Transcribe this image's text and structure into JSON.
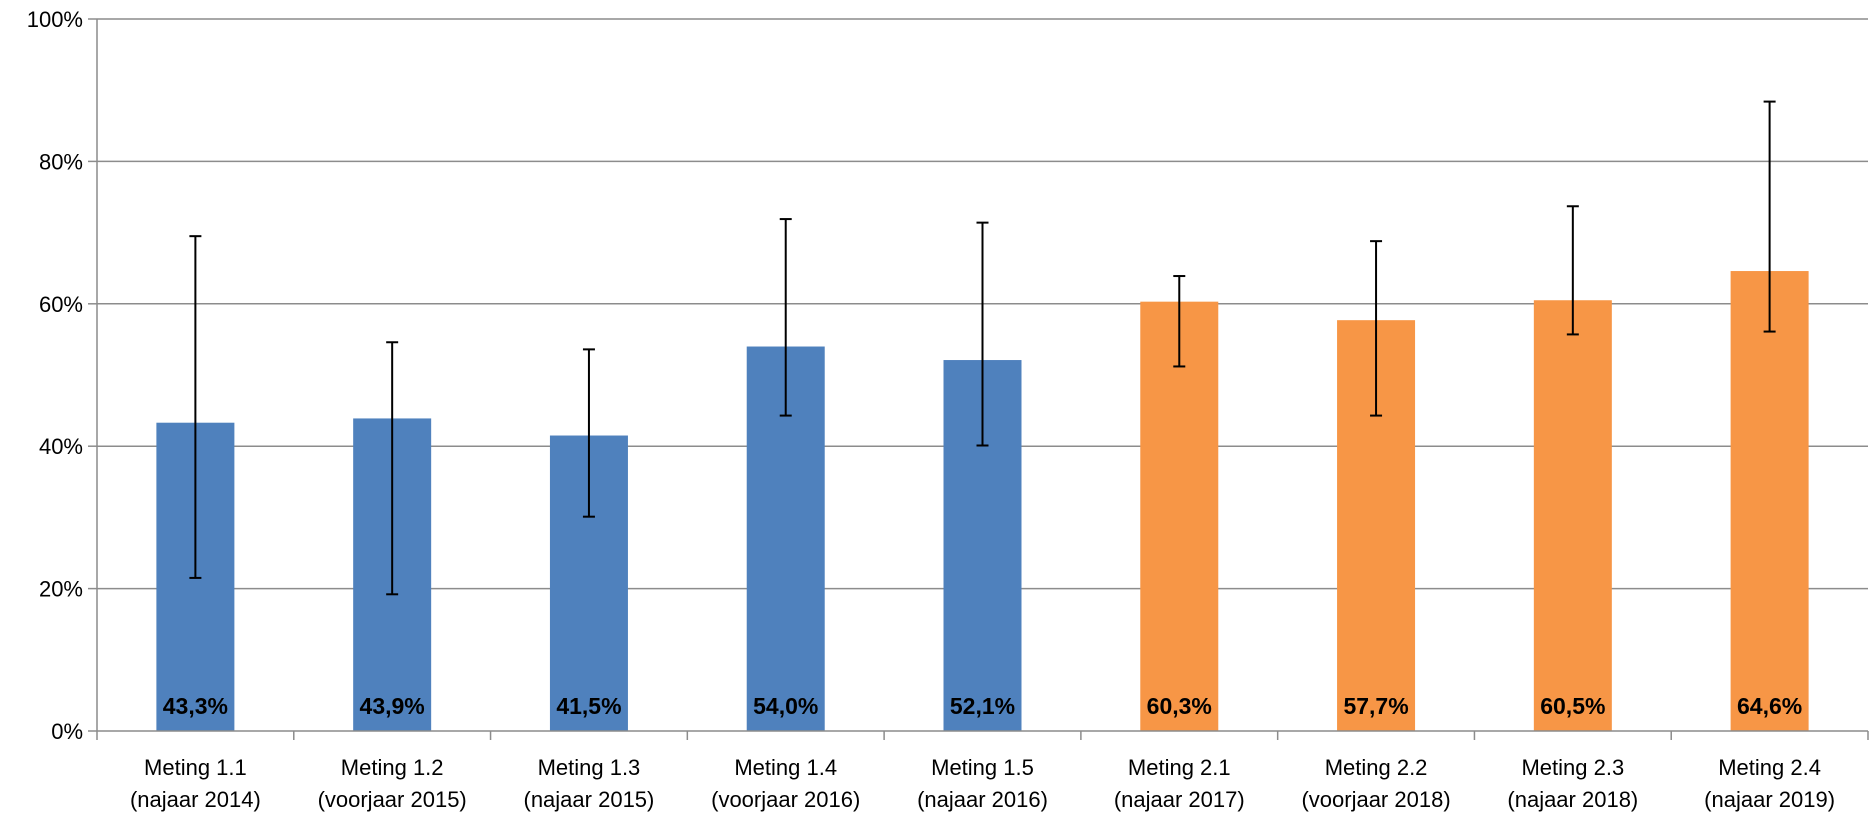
{
  "chart_data": {
    "type": "bar",
    "categories": [
      [
        "Meting 1.1",
        "(najaar 2014)"
      ],
      [
        "Meting 1.2",
        "(voorjaar 2015)"
      ],
      [
        "Meting 1.3",
        "(najaar 2015)"
      ],
      [
        "Meting 1.4",
        "(voorjaar 2016)"
      ],
      [
        "Meting 1.5",
        "(najaar 2016)"
      ],
      [
        "Meting 2.1",
        "(najaar 2017)"
      ],
      [
        "Meting 2.2",
        "(voorjaar 2018)"
      ],
      [
        "Meting 2.3",
        "(najaar 2018)"
      ],
      [
        "Meting 2.4",
        "(najaar 2019)"
      ]
    ],
    "values": [
      43.3,
      43.9,
      41.5,
      54.0,
      52.1,
      60.3,
      57.7,
      60.5,
      64.6
    ],
    "value_labels": [
      "43,3%",
      "43,9%",
      "41,5%",
      "54,0%",
      "52,1%",
      "60,3%",
      "57,7%",
      "60,5%",
      "64,6%"
    ],
    "error_low": [
      21.5,
      19.2,
      30.1,
      44.3,
      40.1,
      51.2,
      44.3,
      55.7,
      56.1
    ],
    "error_high": [
      69.5,
      54.6,
      53.6,
      71.9,
      71.4,
      63.9,
      68.8,
      73.7,
      88.4
    ],
    "bar_colors": [
      "#4f81bd",
      "#4f81bd",
      "#4f81bd",
      "#4f81bd",
      "#4f81bd",
      "#f79646",
      "#f79646",
      "#f79646",
      "#f79646"
    ],
    "y_ticks": [
      "0%",
      "20%",
      "40%",
      "60%",
      "80%",
      "100%"
    ],
    "ylim": [
      0,
      100
    ],
    "grid": true,
    "title": "",
    "xlabel": "",
    "ylabel": ""
  }
}
